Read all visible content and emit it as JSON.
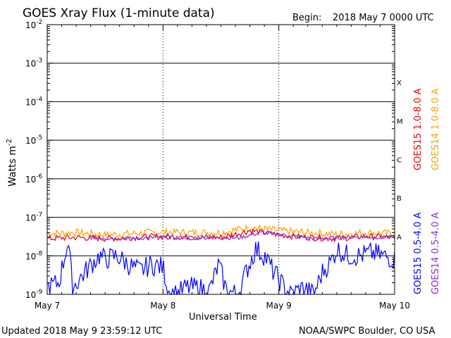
{
  "header": {
    "title": "GOES Xray Flux (1-minute data)",
    "begin_label": "Begin:",
    "begin_value": "2018 May 7 0000 UTC"
  },
  "footer": {
    "updated": "Updated 2018 May  9 23:59:12 UTC",
    "credit": "NOAA/SWPC Boulder, CO USA"
  },
  "chart_data": {
    "type": "line",
    "title": "GOES Xray Flux (1-minute data)",
    "xlabel": "Universal Time",
    "ylabel": "Watts m",
    "ylabel_superscript": "-2",
    "y_scale": "log",
    "ylim": [
      1e-09,
      0.01
    ],
    "x_range_days": [
      0,
      3
    ],
    "x_ticks": [
      {
        "day": 0,
        "label": "May 7"
      },
      {
        "day": 1,
        "label": "May 8"
      },
      {
        "day": 2,
        "label": "May 9"
      },
      {
        "day": 3,
        "label": "May 10"
      }
    ],
    "y_ticks": [
      {
        "exp": -9,
        "label": "10",
        "sup": "-9"
      },
      {
        "exp": -8,
        "label": "10",
        "sup": "-8"
      },
      {
        "exp": -7,
        "label": "10",
        "sup": "-7"
      },
      {
        "exp": -6,
        "label": "10",
        "sup": "-6"
      },
      {
        "exp": -5,
        "label": "10",
        "sup": "-5"
      },
      {
        "exp": -4,
        "label": "10",
        "sup": "-4"
      },
      {
        "exp": -3,
        "label": "10",
        "sup": "-3"
      },
      {
        "exp": -2,
        "label": "10",
        "sup": "-2"
      }
    ],
    "flare_classes": [
      {
        "label": "A",
        "exp": -8
      },
      {
        "label": "B",
        "exp": -7
      },
      {
        "label": "C",
        "exp": -6
      },
      {
        "label": "M",
        "exp": -5
      },
      {
        "label": "X",
        "exp": -4
      }
    ],
    "grid": true,
    "legend_right": [
      {
        "label": "GOES15 1.0-8.0 A",
        "color": "#e8000b"
      },
      {
        "label": "GOES14 1.0-8.0 A",
        "color": "#ffa000"
      }
    ],
    "legend_right_lower": [
      {
        "label": "GOES15 0.5-4.0 A",
        "color": "#0000ff"
      },
      {
        "label": "GOES14 0.5-4.0 A",
        "color": "#8a2be2"
      }
    ],
    "series": [
      {
        "name": "GOES14 1.0-8.0 A",
        "color": "#ffa000",
        "x": [
          0,
          0.25,
          0.5,
          0.75,
          1.0,
          1.25,
          1.5,
          1.75,
          2.0,
          2.25,
          2.5,
          2.75,
          3.0
        ],
        "y": [
          3.8e-08,
          4e-08,
          3.5e-08,
          3.8e-08,
          4.2e-08,
          4e-08,
          4e-08,
          5.5e-08,
          4.5e-08,
          4e-08,
          3.6e-08,
          4e-08,
          3.8e-08
        ]
      },
      {
        "name": "GOES15 1.0-8.0 A",
        "color": "#e8000b",
        "x": [
          0,
          0.25,
          0.5,
          0.75,
          1.0,
          1.25,
          1.5,
          1.75,
          2.0,
          2.25,
          2.5,
          2.75,
          3.0
        ],
        "y": [
          2.8e-08,
          3e-08,
          2.8e-08,
          3e-08,
          3.2e-08,
          3e-08,
          3e-08,
          4.5e-08,
          3.5e-08,
          3e-08,
          2.8e-08,
          3.2e-08,
          3e-08
        ]
      },
      {
        "name": "GOES14 0.5-4.0 A",
        "color": "#8a2be2",
        "x": [
          0.35,
          0.65,
          1.0,
          1.35,
          1.65,
          1.85,
          2.1,
          2.3,
          2.7,
          3.0
        ],
        "y": [
          3e-08,
          2.8e-08,
          3e-08,
          3e-08,
          2.9e-08,
          4e-08,
          3.3e-08,
          2.8e-08,
          3.1e-08,
          3e-08
        ]
      },
      {
        "name": "GOES15 0.5-4.0 A",
        "color": "#0000ff",
        "x": [
          0,
          0.1,
          0.18,
          0.22,
          0.3,
          0.38,
          0.45,
          0.5,
          0.6,
          0.7,
          0.8,
          0.9,
          1.0,
          1.05,
          1.12,
          1.2,
          1.3,
          1.4,
          1.48,
          1.55,
          1.65,
          1.72,
          1.8,
          1.88,
          1.95,
          2.05,
          2.1,
          2.15,
          2.22,
          2.3,
          2.38,
          2.45,
          2.5,
          2.6,
          2.7,
          2.8,
          2.9,
          3.0
        ],
        "y": [
          1.5e-09,
          2e-09,
          2.5e-08,
          1.5e-09,
          3e-09,
          6e-09,
          1e-08,
          8e-09,
          1e-08,
          6e-09,
          4e-09,
          6e-09,
          5e-09,
          1.2e-09,
          1e-09,
          1.5e-09,
          1.5e-09,
          1.2e-09,
          6e-09,
          1.2e-09,
          1e-09,
          4e-09,
          1.5e-08,
          1e-08,
          4e-09,
          1.5e-09,
          1e-09,
          1.2e-09,
          1.5e-09,
          1e-09,
          4e-09,
          7e-09,
          1.5e-08,
          1e-08,
          1e-08,
          1.2e-08,
          1e-08,
          8e-09
        ]
      }
    ]
  }
}
